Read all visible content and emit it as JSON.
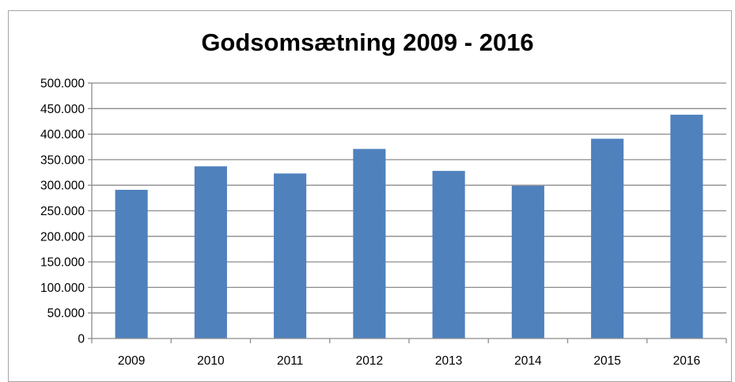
{
  "chart_data": {
    "type": "bar",
    "title": "Godsomsætning 2009 - 2016",
    "xlabel": "",
    "ylabel": "",
    "categories": [
      "2009",
      "2010",
      "2011",
      "2012",
      "2013",
      "2014",
      "2015",
      "2016"
    ],
    "values": [
      291000,
      337000,
      323000,
      371000,
      328000,
      299000,
      391000,
      438000
    ],
    "ylim": [
      0,
      500000
    ],
    "yticks": [
      0,
      50000,
      100000,
      150000,
      200000,
      250000,
      300000,
      350000,
      400000,
      450000,
      500000
    ],
    "ytick_labels": [
      "0",
      "50.000",
      "100.000",
      "150.000",
      "200.000",
      "250.000",
      "300.000",
      "350.000",
      "400.000",
      "450.000",
      "500.000"
    ],
    "grid": true,
    "legend": "none",
    "bar_color": "#4f81bd",
    "gridline_color": "#8c8c8c"
  }
}
